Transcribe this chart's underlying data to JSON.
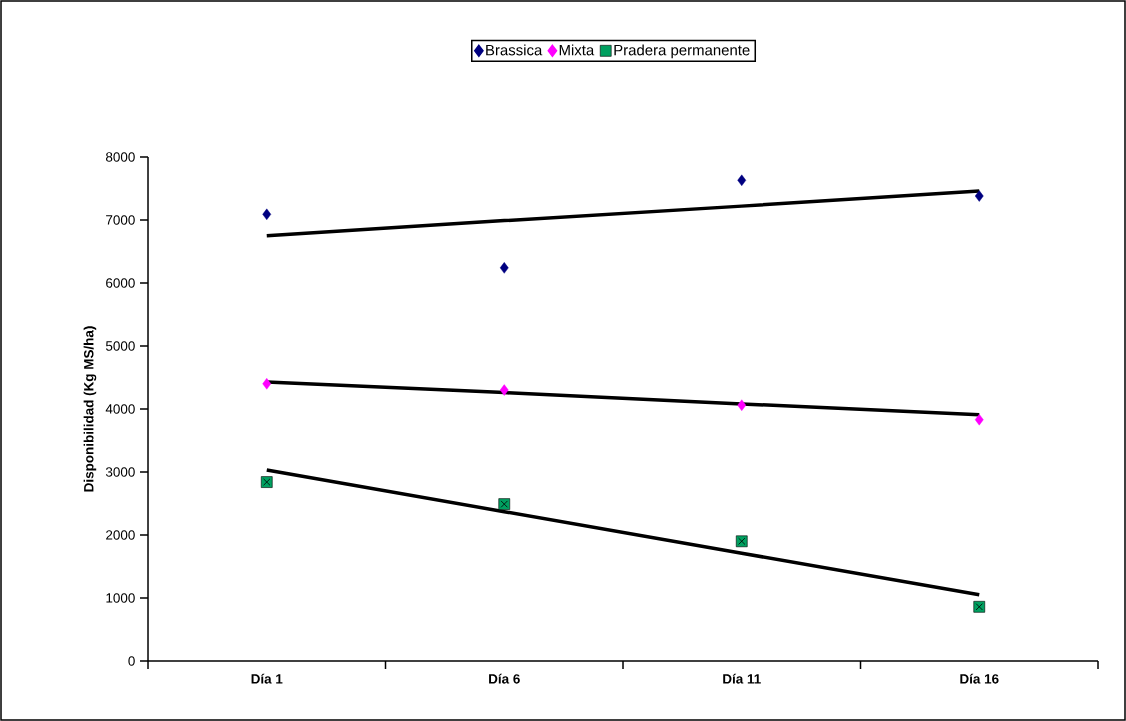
{
  "chart_data": {
    "type": "scatter",
    "ylabel": "Disponibilidad (Kg MS/ha)",
    "categories": [
      "Día 1",
      "Día 6",
      "Día 11",
      "Día 16"
    ],
    "ylim": [
      0,
      8000
    ],
    "yticks": [
      0,
      1000,
      2000,
      3000,
      4000,
      5000,
      6000,
      7000,
      8000
    ],
    "legend": "top",
    "grid": false,
    "series": [
      {
        "name": "Brassica",
        "color": "#000080",
        "marker": "diamond",
        "values": [
          7090,
          6240,
          7630,
          7380
        ]
      },
      {
        "name": "Mixta",
        "color": "#ff00ff",
        "marker": "diamond",
        "values": [
          4400,
          4300,
          4060,
          3830
        ]
      },
      {
        "name": "Pradera permanente",
        "color": "#00a060",
        "marker": "square",
        "values": [
          2840,
          2490,
          1900,
          860
        ]
      },
      {
        "type": "line",
        "color": "#000000",
        "values": [
          6750,
          6990,
          7220,
          7460
        ]
      },
      {
        "type": "line",
        "color": "#000000",
        "values": [
          4430,
          4260,
          4080,
          3910
        ]
      },
      {
        "type": "line",
        "color": "#000000",
        "values": [
          3030,
          2370,
          1710,
          1050
        ]
      }
    ]
  }
}
